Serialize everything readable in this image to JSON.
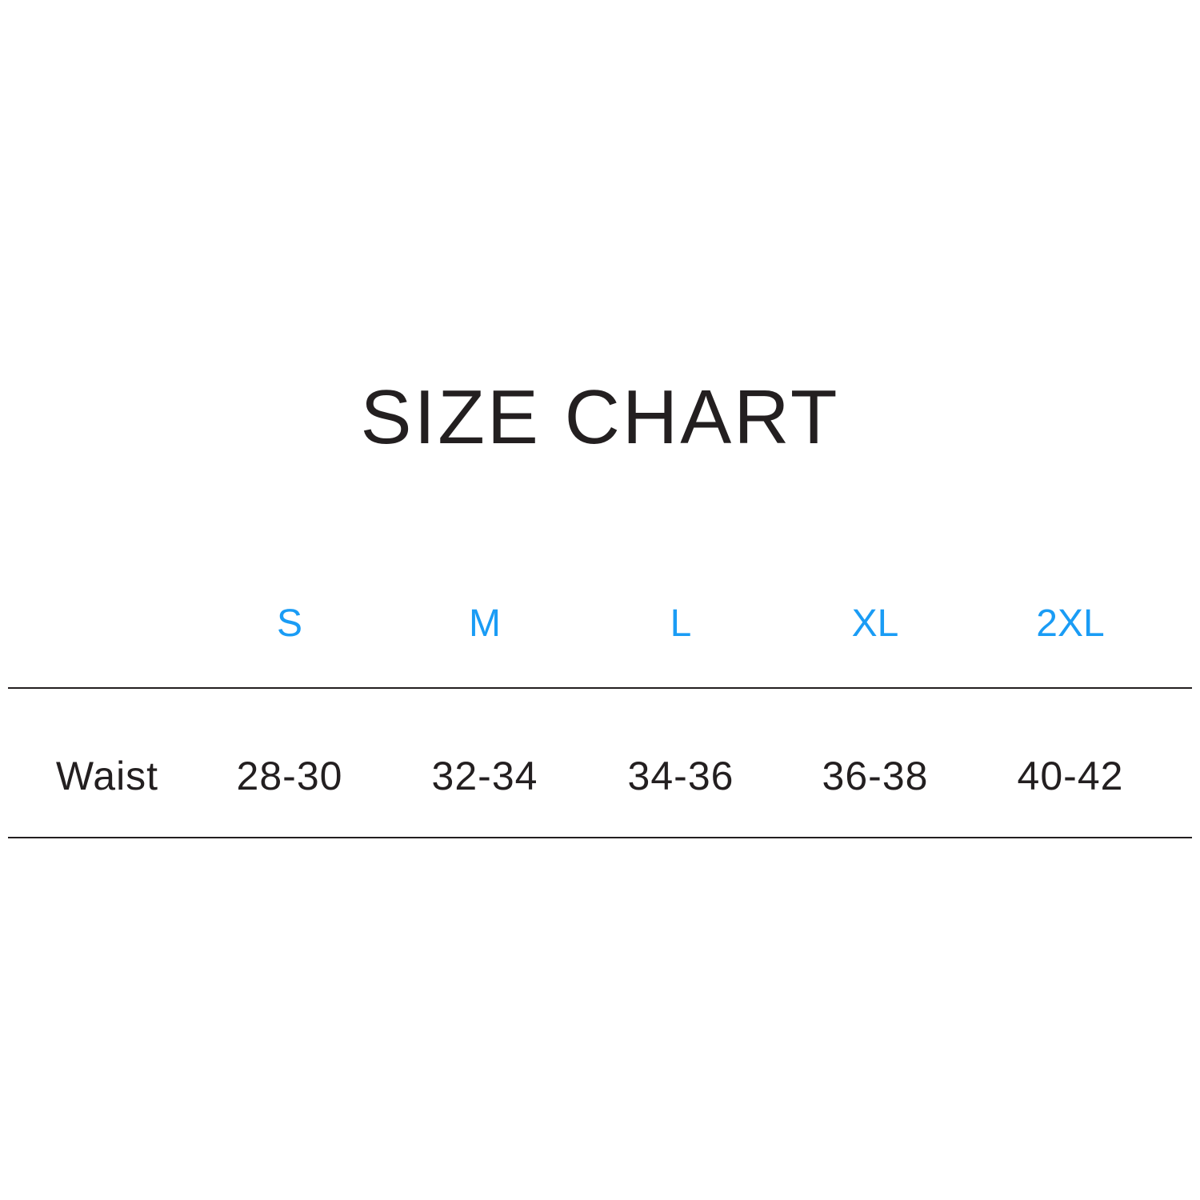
{
  "title": "SIZE CHART",
  "accent_color": "#1a9cf5",
  "table": {
    "headers": [
      "S",
      "M",
      "L",
      "XL",
      "2XL"
    ],
    "rows": [
      {
        "label": "Waist",
        "values": [
          "28-30",
          "32-34",
          "34-36",
          "36-38",
          "40-42"
        ]
      }
    ]
  }
}
